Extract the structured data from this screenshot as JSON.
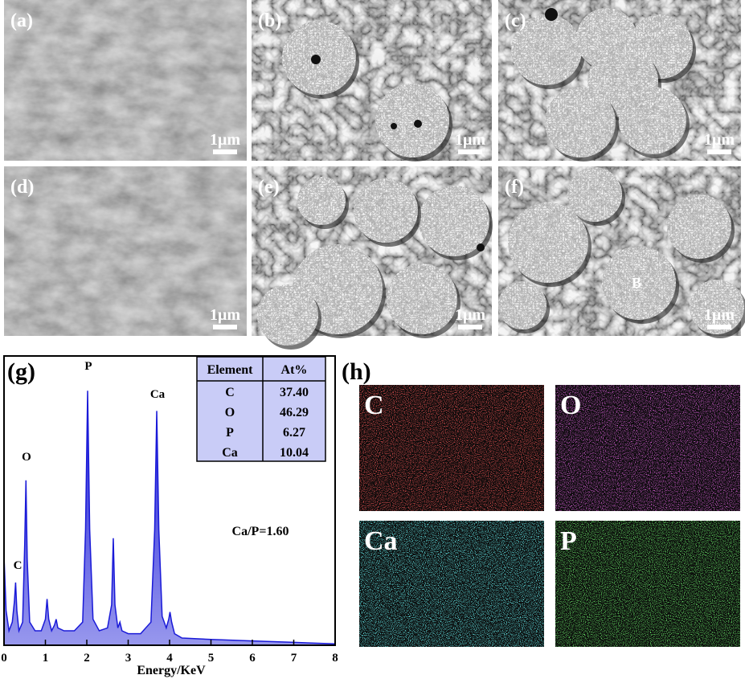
{
  "sem_panels": [
    {
      "label": "(a)",
      "scale_bar": "1μm"
    },
    {
      "label": "(b)",
      "scale_bar": "1μm"
    },
    {
      "label": "(c)",
      "scale_bar": "1μm"
    },
    {
      "label": "(d)",
      "scale_bar": "1μm"
    },
    {
      "label": "(e)",
      "scale_bar": "1μm"
    },
    {
      "label": "(f)",
      "scale_bar": "1μm"
    }
  ],
  "sem_annotation": "B",
  "chart_data": {
    "type": "area",
    "panel_label": "(g)",
    "x_label": "Energy/KeV",
    "color": "#1a1ad8",
    "x": [
      0,
      0.05,
      0.12,
      0.2,
      0.25,
      0.28,
      0.31,
      0.36,
      0.45,
      0.5,
      0.53,
      0.56,
      0.62,
      0.75,
      0.9,
      1.0,
      1.04,
      1.08,
      1.15,
      1.22,
      1.26,
      1.3,
      1.45,
      1.7,
      1.9,
      1.97,
      2.02,
      2.07,
      2.15,
      2.3,
      2.5,
      2.6,
      2.64,
      2.68,
      2.75,
      2.8,
      2.85,
      3.0,
      3.3,
      3.55,
      3.64,
      3.69,
      3.74,
      3.82,
      3.92,
      3.98,
      4.01,
      4.05,
      4.12,
      4.3,
      5,
      6,
      7,
      8
    ],
    "values": [
      31,
      12,
      5,
      8,
      15,
      21.7,
      12,
      5,
      8,
      35,
      57,
      30,
      8,
      5,
      5,
      9,
      16,
      9,
      5,
      7,
      9,
      6,
      5,
      5,
      8,
      40,
      88,
      40,
      9,
      5,
      6,
      14,
      37,
      14,
      6,
      8,
      5,
      4,
      4,
      8,
      40,
      81,
      40,
      10,
      6,
      9,
      11.5,
      8,
      4,
      2.5,
      2,
      1.5,
      1,
      0.5
    ],
    "xlim": [
      0,
      8
    ],
    "xticks": [
      0,
      1,
      2,
      3,
      4,
      5,
      6,
      7,
      8
    ],
    "ylim": [
      0,
      100
    ],
    "peak_labels": [
      "P",
      "Ca",
      "O",
      "C"
    ],
    "annotation": "Ca/P=1.60",
    "table": {
      "headers": [
        "Element",
        "At%"
      ],
      "rows": [
        [
          "C",
          "37.40"
        ],
        [
          "O",
          "46.29"
        ],
        [
          "P",
          "6.27"
        ],
        [
          "Ca",
          "10.04"
        ]
      ]
    }
  },
  "maps": {
    "label": "(h)",
    "panels": [
      {
        "element": "C",
        "color": "#e01818"
      },
      {
        "element": "O",
        "color": "#c020c0"
      },
      {
        "element": "Ca",
        "color": "#20c8c8"
      },
      {
        "element": "P",
        "color": "#20b020"
      }
    ]
  }
}
